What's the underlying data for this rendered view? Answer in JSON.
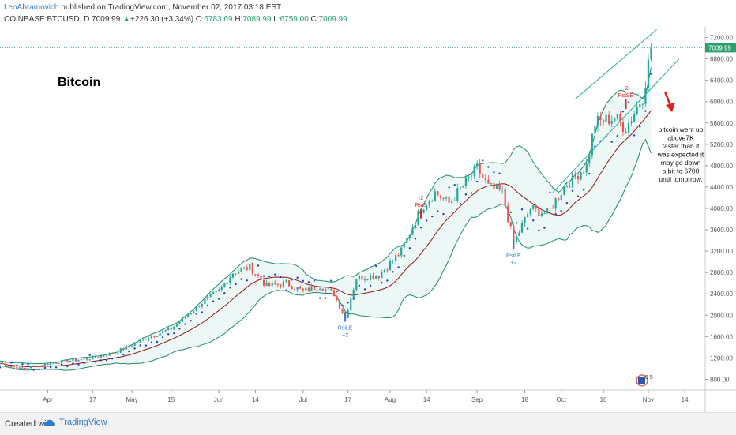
{
  "header": {
    "author": "LeoAbramovich",
    "published_text": " published on TradingView.com, November 02, 2017 03:18 EST",
    "symbol": "COINBASE:BTCUSD, D",
    "last": "7009.99",
    "change_arrow": "▲",
    "change": "+226.30 (+3.34%)",
    "o_label": "O:",
    "o_value": "6783.69",
    "h_label": "H:",
    "h_value": "7089.99",
    "l_label": "L:",
    "l_value": "6759.00",
    "c_label": "C:",
    "c_value": "7009.99"
  },
  "footer": {
    "created_with": "Created with",
    "brand": "TradingView"
  },
  "colors": {
    "up": "#26a69a",
    "down": "#ef5350",
    "band": "#1e8a6b",
    "band_fill": "#e8f5f2",
    "basis": "#8b1a1a",
    "sar": "#1f3fbf",
    "arrow": "#e02020",
    "price_tag": "#2aa06d",
    "price_line": "#2aa06d"
  },
  "chart_data": {
    "type": "candlestick",
    "title": "Bitcoin",
    "annotation": [
      "bitcoin went up",
      "above7K",
      "faster than it",
      "was expected it",
      "may go down",
      "a bit to 6700",
      "until tomorrow."
    ],
    "last_price_label": "7009.99",
    "ylim": [
      600,
      7400
    ],
    "y_ticks": [
      800,
      1200,
      1600,
      2000,
      2400,
      2800,
      3200,
      3600,
      4000,
      4400,
      4800,
      5200,
      5600,
      6000,
      6400,
      6800,
      7200
    ],
    "y_tick_labels": [
      "800.00",
      "1200.00",
      "1600.00",
      "2000.00",
      "2400.00",
      "2800.00",
      "3200.00",
      "3600.00",
      "4000.00",
      "4400.00",
      "4800.00",
      "5200.00",
      "5600.00",
      "6000.00",
      "6400.00",
      "6800.00",
      "7200.00"
    ],
    "x_ticks": [
      {
        "label": "Apr",
        "date": "2017-04-01"
      },
      {
        "label": "17",
        "date": "2017-04-17"
      },
      {
        "label": "May",
        "date": "2017-05-01"
      },
      {
        "label": "15",
        "date": "2017-05-15"
      },
      {
        "label": "Jun",
        "date": "2017-06-01"
      },
      {
        "label": "14",
        "date": "2017-06-14"
      },
      {
        "label": "Jul",
        "date": "2017-07-01"
      },
      {
        "label": "17",
        "date": "2017-07-17"
      },
      {
        "label": "Aug",
        "date": "2017-08-01"
      },
      {
        "label": "14",
        "date": "2017-08-14"
      },
      {
        "label": "Sep",
        "date": "2017-09-01"
      },
      {
        "label": "18",
        "date": "2017-09-18"
      },
      {
        "label": "Oct",
        "date": "2017-10-01"
      },
      {
        "label": "16",
        "date": "2017-10-16"
      },
      {
        "label": "Nov",
        "date": "2017-11-01"
      },
      {
        "label": "14",
        "date": "2017-11-14"
      }
    ],
    "x_range": [
      "2017-03-15",
      "2017-11-21"
    ],
    "price_anchors": [
      [
        "2017-03-15",
        1100
      ],
      [
        "2017-03-22",
        1000
      ],
      [
        "2017-03-28",
        1050
      ],
      [
        "2017-04-05",
        1130
      ],
      [
        "2017-04-15",
        1180
      ],
      [
        "2017-04-25",
        1300
      ],
      [
        "2017-05-05",
        1550
      ],
      [
        "2017-05-15",
        1750
      ],
      [
        "2017-05-25",
        2200
      ],
      [
        "2017-06-01",
        2450
      ],
      [
        "2017-06-06",
        2800
      ],
      [
        "2017-06-12",
        2900
      ],
      [
        "2017-06-18",
        2550
      ],
      [
        "2017-06-25",
        2600
      ],
      [
        "2017-07-01",
        2450
      ],
      [
        "2017-07-07",
        2550
      ],
      [
        "2017-07-12",
        2400
      ],
      [
        "2017-07-16",
        1950
      ],
      [
        "2017-07-20",
        2700
      ],
      [
        "2017-07-28",
        2750
      ],
      [
        "2017-08-05",
        3200
      ],
      [
        "2017-08-12",
        4000
      ],
      [
        "2017-08-17",
        4300
      ],
      [
        "2017-08-22",
        4100
      ],
      [
        "2017-09-01",
        4750
      ],
      [
        "2017-09-05",
        4400
      ],
      [
        "2017-09-10",
        4300
      ],
      [
        "2017-09-14",
        3350
      ],
      [
        "2017-09-20",
        4000
      ],
      [
        "2017-09-26",
        3900
      ],
      [
        "2017-10-02",
        4400
      ],
      [
        "2017-10-10",
        4800
      ],
      [
        "2017-10-13",
        5600
      ],
      [
        "2017-10-20",
        5700
      ],
      [
        "2017-10-24",
        5500
      ],
      [
        "2017-10-30",
        6100
      ],
      [
        "2017-11-02",
        7010
      ]
    ],
    "labels": [
      {
        "text": "RsiLE",
        "sub": "+2",
        "date": "2017-07-16",
        "price": 1850,
        "color": "#2e7bcf",
        "below": true
      },
      {
        "text": "RsiS",
        "sub": "-2",
        "date": "2017-08-12",
        "price": 3900,
        "color": "#e02020",
        "below": false
      },
      {
        "text": "RsiLE",
        "sub": "+2",
        "date": "2017-09-14",
        "price": 3200,
        "color": "#2e7bcf",
        "below": true
      },
      {
        "text": "RsiSE",
        "sub": "-2",
        "date": "2017-10-24",
        "price": 5950,
        "color": "#e02020",
        "below": false
      }
    ],
    "events_badge": "5 5"
  }
}
